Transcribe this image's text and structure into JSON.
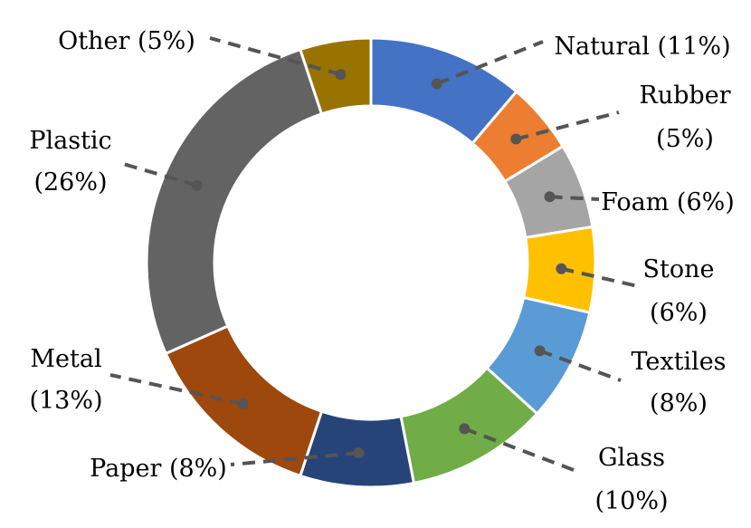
{
  "chart_data": {
    "type": "pie",
    "style": "donut",
    "title": "",
    "legend": "none",
    "slices": [
      {
        "label": "Natural (11%)",
        "value": 11,
        "color": "#4472C4"
      },
      {
        "label": "Rubber (5%)",
        "value": 5,
        "color": "#ED7D31"
      },
      {
        "label": "Foam (6%)",
        "value": 6,
        "color": "#A5A5A5"
      },
      {
        "label": "Stone (6%)",
        "value": 6,
        "color": "#FFC000"
      },
      {
        "label": "Textiles (8%)",
        "value": 8,
        "color": "#5B9BD5"
      },
      {
        "label": "Glass (10%)",
        "value": 10,
        "color": "#70AD47"
      },
      {
        "label": "Paper (8%)",
        "value": 8,
        "color": "#264478"
      },
      {
        "label": "Metal (13%)",
        "value": 13,
        "color": "#9E480E"
      },
      {
        "label": "Plastic (26%)",
        "value": 26,
        "color": "#636363"
      },
      {
        "label": "Other (5%)",
        "value": 5,
        "color": "#997300"
      }
    ]
  }
}
